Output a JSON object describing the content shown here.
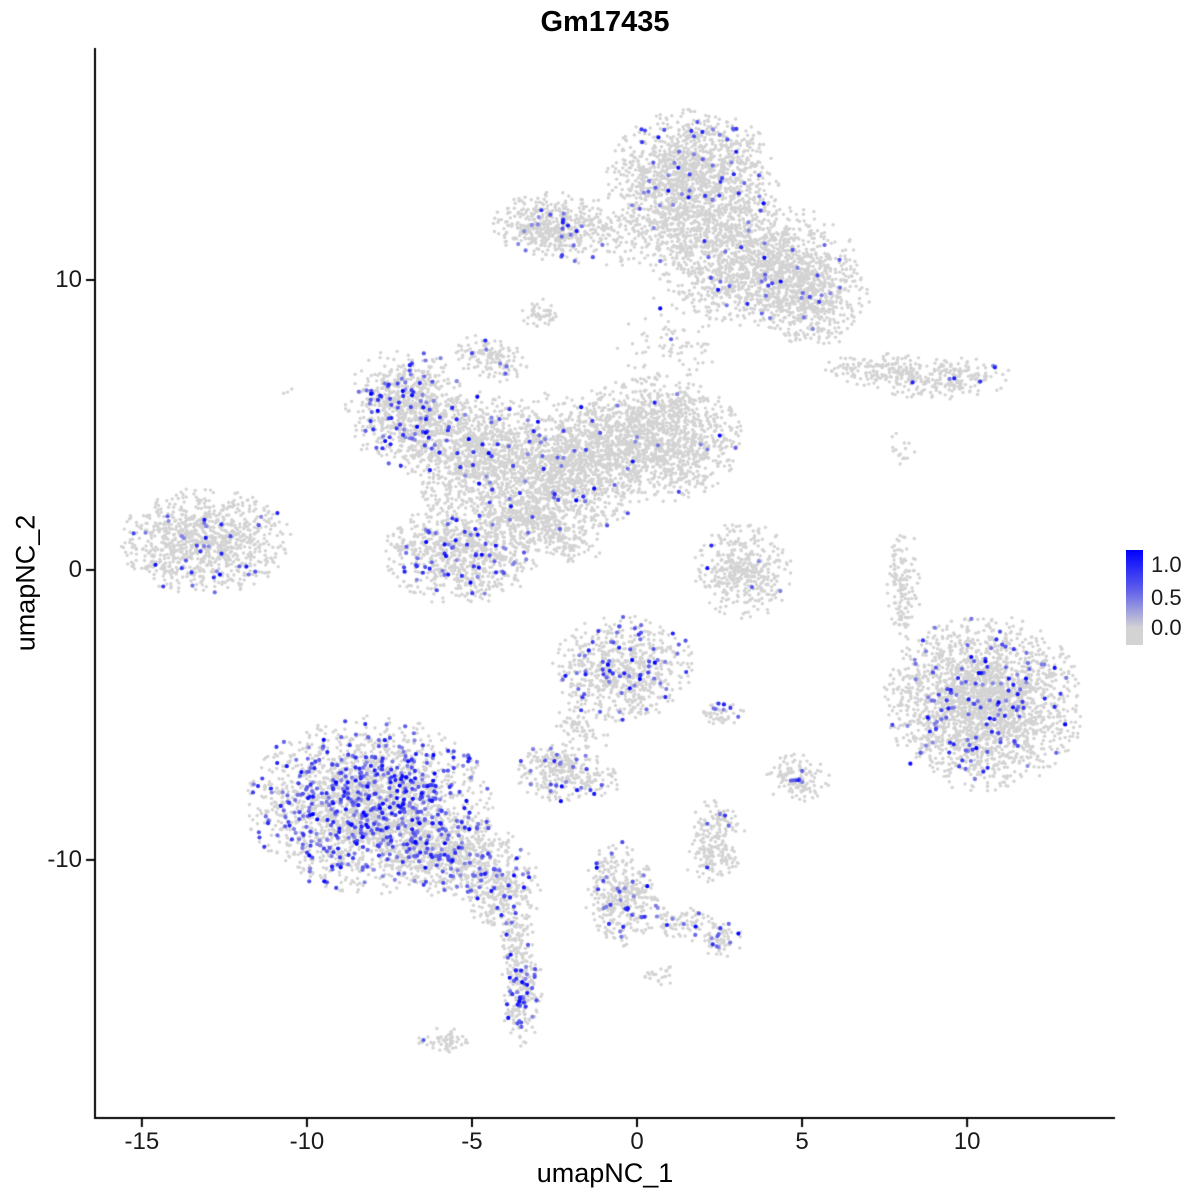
{
  "chart_data": {
    "type": "scatter",
    "title": "Gm17435",
    "xlabel": "umapNC_1",
    "ylabel": "umapNC_2",
    "xlim": [
      -16.42,
      14.48
    ],
    "ylim": [
      -18.9,
      18.0
    ],
    "x_ticks": [
      -15,
      -10,
      -5,
      0,
      5,
      10
    ],
    "x_tick_labels": [
      "-15",
      "-10",
      "-5",
      "0",
      "5",
      "10"
    ],
    "y_ticks": [
      -10,
      0,
      10
    ],
    "y_tick_labels": [
      "-10",
      "0",
      "10"
    ],
    "grid": false,
    "legend_position": "right",
    "color_low": "#d3d3d3",
    "color_high": "#0000ff",
    "axis_color": "#000000",
    "background_color": "#ffffff",
    "colorbar": {
      "labels": [
        "1.0",
        "0.5",
        "0.0"
      ],
      "values": [
        1.0,
        0.5,
        0.0
      ]
    },
    "description": "UMAP feature plot of gene Gm17435 expression; grey cells = no expression, purple-blue cells = expressing. Clusters given as gaussian blob summaries (center x/y in UMAP coords, spread sx/sy, cell count n, expressing fraction f, optional rotation deg).",
    "clusters": [
      {
        "x": 1.7,
        "y": 13.5,
        "sx": 1.2,
        "sy": 1.1,
        "n": 1500,
        "f": 0.035
      },
      {
        "x": 3.6,
        "y": 10.6,
        "sx": 1.4,
        "sy": 1.0,
        "n": 1300,
        "f": 0.02
      },
      {
        "x": 5.3,
        "y": 9.4,
        "sx": 0.8,
        "sy": 0.8,
        "n": 500,
        "f": 0.025
      },
      {
        "x": -2.6,
        "y": 11.9,
        "sx": 0.8,
        "sy": 0.55,
        "n": 450,
        "f": 0.03
      },
      {
        "x": 0.2,
        "y": 11.6,
        "sx": 1.5,
        "sy": 0.6,
        "n": 300,
        "f": 0.01
      },
      {
        "x": -2.9,
        "y": 8.8,
        "sx": 0.28,
        "sy": 0.25,
        "n": 55,
        "f": 0.05
      },
      {
        "x": 1.0,
        "y": 7.8,
        "sx": 0.8,
        "sy": 0.8,
        "n": 80,
        "f": 0.02
      },
      {
        "x": -7.0,
        "y": 5.6,
        "sx": 0.85,
        "sy": 0.95,
        "n": 750,
        "f": 0.1
      },
      {
        "x": -5.0,
        "y": 4.0,
        "sx": 1.0,
        "sy": 1.0,
        "n": 900,
        "f": 0.04
      },
      {
        "x": -4.4,
        "y": 7.3,
        "sx": 0.55,
        "sy": 0.35,
        "n": 140,
        "f": 0.05,
        "rot": -20
      },
      {
        "x": -2.5,
        "y": 3.3,
        "sx": 1.2,
        "sy": 1.3,
        "n": 1300,
        "f": 0.03
      },
      {
        "x": 0.4,
        "y": 4.5,
        "sx": 1.3,
        "sy": 1.0,
        "n": 1500,
        "f": 0.015
      },
      {
        "x": -5.3,
        "y": 0.6,
        "sx": 1.1,
        "sy": 0.85,
        "n": 850,
        "f": 0.07
      },
      {
        "x": -3.0,
        "y": 1.5,
        "sx": 1.0,
        "sy": 0.35,
        "n": 240,
        "f": 0.02,
        "rot": -30
      },
      {
        "x": -13.1,
        "y": 1.0,
        "sx": 1.2,
        "sy": 0.85,
        "n": 950,
        "f": 0.05
      },
      {
        "x": 3.2,
        "y": 0.0,
        "sx": 0.7,
        "sy": 0.8,
        "n": 400,
        "f": 0.012
      },
      {
        "x": 8.1,
        "y": -0.5,
        "sx": 0.25,
        "sy": 0.95,
        "n": 140,
        "f": 0.0
      },
      {
        "x": 7.4,
        "y": 6.9,
        "sx": 0.8,
        "sy": 0.28,
        "n": 160,
        "f": 0.02
      },
      {
        "x": 9.3,
        "y": 6.6,
        "sx": 1.0,
        "sy": 0.35,
        "n": 220,
        "f": 0.03
      },
      {
        "x": 8.0,
        "y": 4.3,
        "sx": 0.2,
        "sy": 0.5,
        "n": 16,
        "f": 0.0
      },
      {
        "x": 10.5,
        "y": -4.6,
        "sx": 1.4,
        "sy": 1.4,
        "n": 2300,
        "f": 0.055
      },
      {
        "x": -0.4,
        "y": -3.4,
        "sx": 1.0,
        "sy": 0.85,
        "n": 700,
        "f": 0.09
      },
      {
        "x": 2.5,
        "y": -5.0,
        "sx": 0.35,
        "sy": 0.2,
        "n": 45,
        "f": 0.12
      },
      {
        "x": -2.4,
        "y": -6.9,
        "sx": 0.6,
        "sy": 0.5,
        "n": 260,
        "f": 0.08
      },
      {
        "x": -1.1,
        "y": -7.3,
        "sx": 0.3,
        "sy": 0.25,
        "n": 45,
        "f": 0.05
      },
      {
        "x": -1.7,
        "y": -5.5,
        "sx": 0.5,
        "sy": 0.28,
        "n": 60,
        "f": 0.03,
        "rot": -40
      },
      {
        "x": -8.1,
        "y": -8.1,
        "sx": 1.7,
        "sy": 1.4,
        "n": 2400,
        "f": 0.21
      },
      {
        "x": -5.6,
        "y": -9.9,
        "sx": 1.2,
        "sy": 0.7,
        "n": 700,
        "f": 0.13,
        "rot": -18
      },
      {
        "x": -4.1,
        "y": -11.3,
        "sx": 0.55,
        "sy": 0.5,
        "n": 200,
        "f": 0.09
      },
      {
        "x": -3.7,
        "y": -12.6,
        "sx": 0.25,
        "sy": 0.5,
        "n": 70,
        "f": 0.06
      },
      {
        "x": 4.9,
        "y": -7.2,
        "sx": 0.45,
        "sy": 0.4,
        "n": 130,
        "f": 0.06
      },
      {
        "x": 2.4,
        "y": -8.8,
        "sx": 0.4,
        "sy": 0.4,
        "n": 90,
        "f": 0.05
      },
      {
        "x": 2.3,
        "y": -9.9,
        "sx": 0.45,
        "sy": 0.4,
        "n": 110,
        "f": 0.05
      },
      {
        "x": -0.5,
        "y": -11.2,
        "sx": 0.5,
        "sy": 0.85,
        "n": 350,
        "f": 0.07
      },
      {
        "x": 1.2,
        "y": -12.1,
        "sx": 0.8,
        "sy": 0.28,
        "n": 110,
        "f": 0.05,
        "rot": -18
      },
      {
        "x": 2.6,
        "y": -12.8,
        "sx": 0.3,
        "sy": 0.3,
        "n": 55,
        "f": 0.15
      },
      {
        "x": -3.5,
        "y": -14.5,
        "sx": 0.3,
        "sy": 0.95,
        "n": 230,
        "f": 0.17
      },
      {
        "x": -5.8,
        "y": -16.2,
        "sx": 0.4,
        "sy": 0.2,
        "n": 55,
        "f": 0.02
      },
      {
        "x": 0.7,
        "y": -14.0,
        "sx": 0.25,
        "sy": 0.18,
        "n": 22,
        "f": 0.0
      },
      {
        "x": -10.6,
        "y": 6.2,
        "sx": 0.12,
        "sy": 0.1,
        "n": 3,
        "f": 0.0
      }
    ]
  },
  "render": {
    "seed": 123456789,
    "point_radius_grey": 1.7,
    "point_radius_expr": 2.1
  }
}
